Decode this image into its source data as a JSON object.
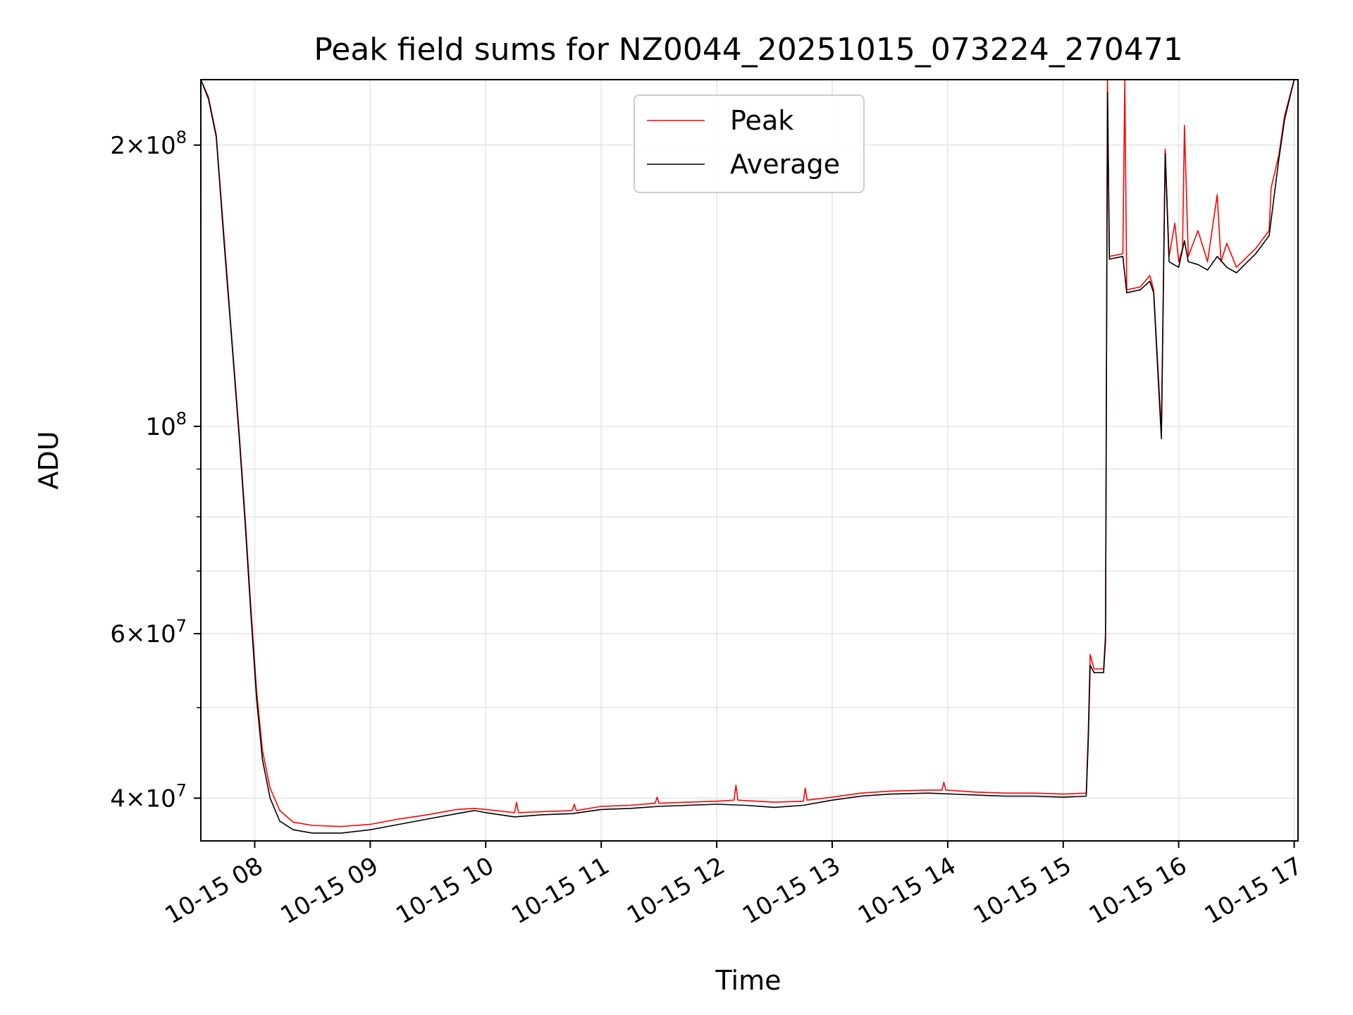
{
  "chart_data": {
    "type": "line",
    "title": "Peak field sums for NZ0044_20251015_073224_270471",
    "xlabel": "Time",
    "ylabel": "ADU",
    "x_type": "datetime",
    "xlim": [
      "2025-10-15T07:32:00",
      "2025-10-15T17:02:00"
    ],
    "ylim": [
      36000000,
      235000000
    ],
    "y_scale": "log",
    "grid": true,
    "legend_position": "upper center",
    "x_ticks": [
      {
        "value": "2025-10-15T08:00:00",
        "label": "10-15 08"
      },
      {
        "value": "2025-10-15T09:00:00",
        "label": "10-15 09"
      },
      {
        "value": "2025-10-15T10:00:00",
        "label": "10-15 10"
      },
      {
        "value": "2025-10-15T11:00:00",
        "label": "10-15 11"
      },
      {
        "value": "2025-10-15T12:00:00",
        "label": "10-15 12"
      },
      {
        "value": "2025-10-15T13:00:00",
        "label": "10-15 13"
      },
      {
        "value": "2025-10-15T14:00:00",
        "label": "10-15 14"
      },
      {
        "value": "2025-10-15T15:00:00",
        "label": "10-15 15"
      },
      {
        "value": "2025-10-15T16:00:00",
        "label": "10-15 16"
      },
      {
        "value": "2025-10-15T17:00:00",
        "label": "10-15 17"
      }
    ],
    "y_ticks": [
      {
        "value": 40000000,
        "base": "4",
        "exp": "7"
      },
      {
        "value": 60000000,
        "base": "6",
        "exp": "7"
      },
      {
        "value": 100000000,
        "base": "",
        "exp": "8"
      },
      {
        "value": 200000000,
        "base": "2",
        "exp": "8"
      }
    ],
    "y_minor_ticks": [
      50000000,
      70000000,
      80000000,
      90000000
    ],
    "series": [
      {
        "name": "Peak",
        "color": "#ff0000",
        "points": [
          [
            "2025-10-15T07:32:00",
            235000000
          ],
          [
            "2025-10-15T07:36:00",
            225000000
          ],
          [
            "2025-10-15T07:40:00",
            205000000
          ],
          [
            "2025-10-15T07:44:00",
            160000000
          ],
          [
            "2025-10-15T07:48:00",
            125000000
          ],
          [
            "2025-10-15T07:52:00",
            98000000
          ],
          [
            "2025-10-15T07:55:00",
            80000000
          ],
          [
            "2025-10-15T07:58:00",
            64000000
          ],
          [
            "2025-10-15T08:01:00",
            52000000
          ],
          [
            "2025-10-15T08:04:00",
            45000000
          ],
          [
            "2025-10-15T08:08:00",
            41000000
          ],
          [
            "2025-10-15T08:13:00",
            38800000
          ],
          [
            "2025-10-15T08:20:00",
            37700000
          ],
          [
            "2025-10-15T08:30:00",
            37400000
          ],
          [
            "2025-10-15T08:45:00",
            37300000
          ],
          [
            "2025-10-15T09:00:00",
            37500000
          ],
          [
            "2025-10-15T09:15:00",
            38000000
          ],
          [
            "2025-10-15T09:30:00",
            38400000
          ],
          [
            "2025-10-15T09:45:00",
            38900000
          ],
          [
            "2025-10-15T09:54:00",
            39000000
          ],
          [
            "2025-10-15T10:00:00",
            38900000
          ],
          [
            "2025-10-15T10:15:00",
            38600000
          ],
          [
            "2025-10-15T10:16:00",
            39600000
          ],
          [
            "2025-10-15T10:17:00",
            38600000
          ],
          [
            "2025-10-15T10:30:00",
            38700000
          ],
          [
            "2025-10-15T10:45:00",
            38800000
          ],
          [
            "2025-10-15T10:46:00",
            39400000
          ],
          [
            "2025-10-15T10:47:00",
            38800000
          ],
          [
            "2025-10-15T11:00:00",
            39200000
          ],
          [
            "2025-10-15T11:15:00",
            39300000
          ],
          [
            "2025-10-15T11:28:00",
            39500000
          ],
          [
            "2025-10-15T11:29:00",
            40100000
          ],
          [
            "2025-10-15T11:30:00",
            39500000
          ],
          [
            "2025-10-15T11:45:00",
            39600000
          ],
          [
            "2025-10-15T12:00:00",
            39700000
          ],
          [
            "2025-10-15T12:09:00",
            39800000
          ],
          [
            "2025-10-15T12:10:00",
            41300000
          ],
          [
            "2025-10-15T12:11:00",
            39800000
          ],
          [
            "2025-10-15T12:30:00",
            39600000
          ],
          [
            "2025-10-15T12:45:00",
            39700000
          ],
          [
            "2025-10-15T12:46:00",
            41000000
          ],
          [
            "2025-10-15T12:47:00",
            39800000
          ],
          [
            "2025-10-15T13:00:00",
            40100000
          ],
          [
            "2025-10-15T13:15:00",
            40500000
          ],
          [
            "2025-10-15T13:30:00",
            40700000
          ],
          [
            "2025-10-15T13:50:00",
            40800000
          ],
          [
            "2025-10-15T13:57:00",
            40800000
          ],
          [
            "2025-10-15T13:58:00",
            41600000
          ],
          [
            "2025-10-15T13:59:00",
            40800000
          ],
          [
            "2025-10-15T14:15:00",
            40600000
          ],
          [
            "2025-10-15T14:30:00",
            40500000
          ],
          [
            "2025-10-15T14:45:00",
            40500000
          ],
          [
            "2025-10-15T15:00:00",
            40400000
          ],
          [
            "2025-10-15T15:12:00",
            40500000
          ],
          [
            "2025-10-15T15:13:00",
            47000000
          ],
          [
            "2025-10-15T15:14:00",
            57000000
          ],
          [
            "2025-10-15T15:16:00",
            55000000
          ],
          [
            "2025-10-15T15:21:00",
            55000000
          ],
          [
            "2025-10-15T15:22:00",
            60000000
          ],
          [
            "2025-10-15T15:23:00",
            235000000
          ],
          [
            "2025-10-15T15:24:00",
            152000000
          ],
          [
            "2025-10-15T15:31:00",
            153000000
          ],
          [
            "2025-10-15T15:32:00",
            235000000
          ],
          [
            "2025-10-15T15:33:00",
            140000000
          ],
          [
            "2025-10-15T15:40:00",
            141000000
          ],
          [
            "2025-10-15T15:45:00",
            145000000
          ],
          [
            "2025-10-15T15:47:00",
            140000000
          ],
          [
            "2025-10-15T15:51:00",
            99000000
          ],
          [
            "2025-10-15T15:53:00",
            198000000
          ],
          [
            "2025-10-15T15:55:00",
            152000000
          ],
          [
            "2025-10-15T15:58:00",
            165000000
          ],
          [
            "2025-10-15T16:00:00",
            150000000
          ],
          [
            "2025-10-15T16:02:00",
            155000000
          ],
          [
            "2025-10-15T16:03:00",
            210000000
          ],
          [
            "2025-10-15T16:05:00",
            152000000
          ],
          [
            "2025-10-15T16:10:00",
            162000000
          ],
          [
            "2025-10-15T16:15:00",
            150000000
          ],
          [
            "2025-10-15T16:20:00",
            177000000
          ],
          [
            "2025-10-15T16:22:00",
            150000000
          ],
          [
            "2025-10-15T16:25:00",
            157000000
          ],
          [
            "2025-10-15T16:30:00",
            148000000
          ],
          [
            "2025-10-15T16:40:00",
            155000000
          ],
          [
            "2025-10-15T16:47:00",
            162000000
          ],
          [
            "2025-10-15T16:48:00",
            180000000
          ],
          [
            "2025-10-15T16:52:00",
            195000000
          ],
          [
            "2025-10-15T16:55:00",
            215000000
          ],
          [
            "2025-10-15T17:00:00",
            235000000
          ]
        ]
      },
      {
        "name": "Average",
        "color": "#000000",
        "points": [
          [
            "2025-10-15T07:32:00",
            235000000
          ],
          [
            "2025-10-15T07:36:00",
            224000000
          ],
          [
            "2025-10-15T07:40:00",
            204000000
          ],
          [
            "2025-10-15T07:44:00",
            158000000
          ],
          [
            "2025-10-15T07:48:00",
            124000000
          ],
          [
            "2025-10-15T07:52:00",
            97000000
          ],
          [
            "2025-10-15T07:55:00",
            79000000
          ],
          [
            "2025-10-15T07:58:00",
            63000000
          ],
          [
            "2025-10-15T08:01:00",
            51000000
          ],
          [
            "2025-10-15T08:04:00",
            44000000
          ],
          [
            "2025-10-15T08:08:00",
            40000000
          ],
          [
            "2025-10-15T08:13:00",
            37800000
          ],
          [
            "2025-10-15T08:20:00",
            37000000
          ],
          [
            "2025-10-15T08:30:00",
            36700000
          ],
          [
            "2025-10-15T08:45:00",
            36700000
          ],
          [
            "2025-10-15T09:00:00",
            37000000
          ],
          [
            "2025-10-15T09:15:00",
            37500000
          ],
          [
            "2025-10-15T09:30:00",
            38000000
          ],
          [
            "2025-10-15T09:45:00",
            38500000
          ],
          [
            "2025-10-15T09:54:00",
            38800000
          ],
          [
            "2025-10-15T10:00:00",
            38600000
          ],
          [
            "2025-10-15T10:15:00",
            38200000
          ],
          [
            "2025-10-15T10:30:00",
            38400000
          ],
          [
            "2025-10-15T10:45:00",
            38500000
          ],
          [
            "2025-10-15T11:00:00",
            38900000
          ],
          [
            "2025-10-15T11:15:00",
            39000000
          ],
          [
            "2025-10-15T11:30:00",
            39200000
          ],
          [
            "2025-10-15T11:45:00",
            39300000
          ],
          [
            "2025-10-15T12:00:00",
            39400000
          ],
          [
            "2025-10-15T12:15:00",
            39300000
          ],
          [
            "2025-10-15T12:30:00",
            39100000
          ],
          [
            "2025-10-15T12:45:00",
            39300000
          ],
          [
            "2025-10-15T13:00:00",
            39800000
          ],
          [
            "2025-10-15T13:15:00",
            40200000
          ],
          [
            "2025-10-15T13:30:00",
            40400000
          ],
          [
            "2025-10-15T13:50:00",
            40500000
          ],
          [
            "2025-10-15T14:15:00",
            40300000
          ],
          [
            "2025-10-15T14:30:00",
            40200000
          ],
          [
            "2025-10-15T14:45:00",
            40200000
          ],
          [
            "2025-10-15T15:00:00",
            40100000
          ],
          [
            "2025-10-15T15:12:00",
            40200000
          ],
          [
            "2025-10-15T15:13:00",
            46000000
          ],
          [
            "2025-10-15T15:14:00",
            55500000
          ],
          [
            "2025-10-15T15:16:00",
            54500000
          ],
          [
            "2025-10-15T15:21:00",
            54500000
          ],
          [
            "2025-10-15T15:22:00",
            59000000
          ],
          [
            "2025-10-15T15:23:00",
            228000000
          ],
          [
            "2025-10-15T15:24:00",
            151000000
          ],
          [
            "2025-10-15T15:31:00",
            152000000
          ],
          [
            "2025-10-15T15:33:00",
            139000000
          ],
          [
            "2025-10-15T15:40:00",
            140000000
          ],
          [
            "2025-10-15T15:45:00",
            143000000
          ],
          [
            "2025-10-15T15:47:00",
            139000000
          ],
          [
            "2025-10-15T15:51:00",
            97000000
          ],
          [
            "2025-10-15T15:53:00",
            196000000
          ],
          [
            "2025-10-15T15:55:00",
            150000000
          ],
          [
            "2025-10-15T16:00:00",
            148000000
          ],
          [
            "2025-10-15T16:03:00",
            158000000
          ],
          [
            "2025-10-15T16:05:00",
            150000000
          ],
          [
            "2025-10-15T16:10:00",
            149000000
          ],
          [
            "2025-10-15T16:15:00",
            147000000
          ],
          [
            "2025-10-15T16:20:00",
            152000000
          ],
          [
            "2025-10-15T16:25:00",
            148000000
          ],
          [
            "2025-10-15T16:30:00",
            146000000
          ],
          [
            "2025-10-15T16:40:00",
            153000000
          ],
          [
            "2025-10-15T16:47:00",
            160000000
          ],
          [
            "2025-10-15T16:52:00",
            193000000
          ],
          [
            "2025-10-15T16:55:00",
            213000000
          ],
          [
            "2025-10-15T17:00:00",
            235000000
          ]
        ]
      }
    ]
  }
}
